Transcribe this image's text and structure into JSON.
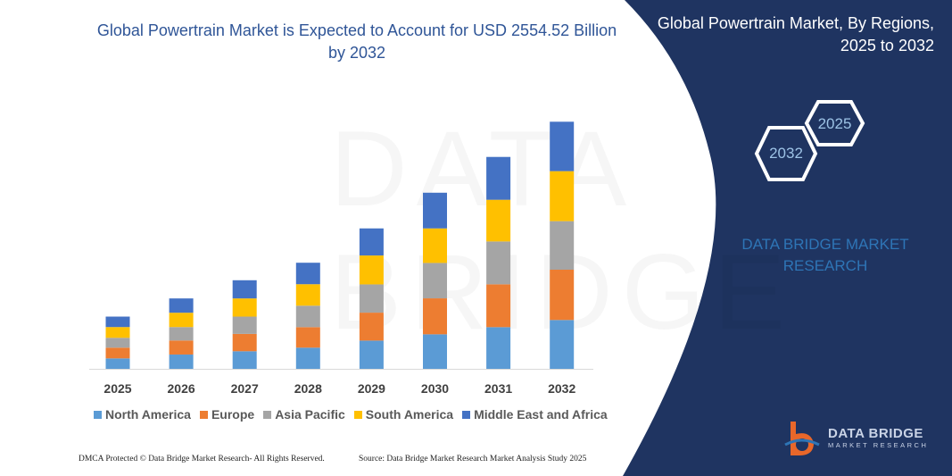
{
  "title": "Global Powertrain Market is Expected to Account for USD 2554.52 Billion by 2032",
  "side": {
    "title": "Global Powertrain Market, By Regions, 2025 to 2032",
    "hex_large": "2032",
    "hex_small": "2025",
    "brand": "DATA BRIDGE MARKET RESEARCH"
  },
  "footer": {
    "left": "DMCA Protected © Data Bridge Market Research- All Rights Reserved.",
    "right": "Source: Data Bridge Market Research Market Analysis Study 2025"
  },
  "logo": {
    "name": "DATA BRIDGE",
    "sub": "MARKET RESEARCH"
  },
  "colors": {
    "panel": "#1f3461",
    "title": "#2f5597"
  },
  "chart_data": {
    "type": "bar",
    "stacked": true,
    "title": "",
    "xlabel": "",
    "ylabel": "",
    "grid": false,
    "legend_position": "bottom",
    "categories": [
      "2025",
      "2026",
      "2027",
      "2028",
      "2029",
      "2030",
      "2031",
      "2032"
    ],
    "series": [
      {
        "name": "North America",
        "color": "#5b9bd5",
        "values": [
          108,
          148,
          182,
          219,
          292,
          357,
          431,
          505
        ]
      },
      {
        "name": "Europe",
        "color": "#ed7d31",
        "values": [
          111,
          145,
          179,
          212,
          289,
          372,
          443,
          520
        ]
      },
      {
        "name": "Asia Pacific",
        "color": "#a5a5a5",
        "values": [
          102,
          139,
          179,
          222,
          292,
          366,
          443,
          502
        ]
      },
      {
        "name": "South America",
        "color": "#ffc000",
        "values": [
          111,
          148,
          188,
          222,
          299,
          357,
          431,
          517
        ]
      },
      {
        "name": "Middle East and Africa",
        "color": "#4472c4",
        "values": [
          108,
          148,
          188,
          222,
          280,
          369,
          443,
          511
        ]
      }
    ],
    "ylim": [
      0,
      2555
    ]
  }
}
